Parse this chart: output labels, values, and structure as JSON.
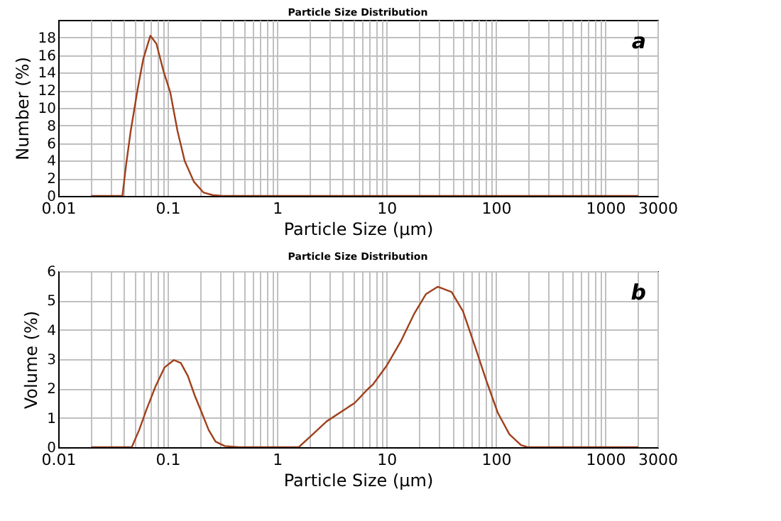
{
  "chart_data": [
    {
      "type": "line",
      "title": "Particle Size Distribution",
      "xlabel": "Particle Size (μm)",
      "ylabel": "Number (%)",
      "annotations": [
        "a"
      ],
      "log": "x",
      "grid": true,
      "marker": "none",
      "line_style": "solid",
      "xlim": [
        0.01,
        3000
      ],
      "ylim": [
        0,
        20
      ],
      "yticks": [
        0,
        2,
        4,
        6,
        8,
        10,
        12,
        14,
        16,
        18
      ],
      "xticks": [
        0.01,
        {
          "value": 0.02,
          "label": null
        },
        {
          "value": 0.03,
          "label": null
        },
        {
          "value": 0.04,
          "label": null
        },
        {
          "value": 0.05,
          "label": null
        },
        {
          "value": 0.06,
          "label": null
        },
        {
          "value": 0.07,
          "label": null
        },
        {
          "value": 0.08,
          "label": null
        },
        {
          "value": 0.09,
          "label": null
        },
        0.1,
        {
          "value": 0.2,
          "label": null
        },
        {
          "value": 0.3,
          "label": null
        },
        {
          "value": 0.4,
          "label": null
        },
        {
          "value": 0.5,
          "label": null
        },
        {
          "value": 0.6,
          "label": null
        },
        {
          "value": 0.7,
          "label": null
        },
        {
          "value": 0.8,
          "label": null
        },
        {
          "value": 0.9,
          "label": null
        },
        1,
        {
          "value": 2,
          "label": null
        },
        {
          "value": 3,
          "label": null
        },
        {
          "value": 4,
          "label": null
        },
        {
          "value": 5,
          "label": null
        },
        {
          "value": 6,
          "label": null
        },
        {
          "value": 7,
          "label": null
        },
        {
          "value": 8,
          "label": null
        },
        {
          "value": 9,
          "label": null
        },
        10,
        {
          "value": 20,
          "label": null
        },
        {
          "value": 30,
          "label": null
        },
        {
          "value": 40,
          "label": null
        },
        {
          "value": 50,
          "label": null
        },
        {
          "value": 60,
          "label": null
        },
        {
          "value": 70,
          "label": null
        },
        {
          "value": 80,
          "label": null
        },
        {
          "value": 90,
          "label": null
        },
        100,
        {
          "value": 200,
          "label": null
        },
        {
          "value": 300,
          "label": null
        },
        {
          "value": 400,
          "label": null
        },
        {
          "value": 500,
          "label": null
        },
        {
          "value": 600,
          "label": null
        },
        {
          "value": 700,
          "label": null
        },
        {
          "value": 800,
          "label": null
        },
        {
          "value": 900,
          "label": null
        },
        1000,
        {
          "value": 2000,
          "label": null
        },
        3000
      ],
      "series": [
        {
          "color": "#a0401c",
          "x": [
            0.02,
            0.0386,
            0.0417,
            0.046,
            0.0533,
            0.06,
            0.0695,
            0.0789,
            0.0916,
            0.106,
            0.123,
            0.143,
            0.174,
            0.212,
            0.257,
            0.313,
            2000
          ],
          "values": [
            0,
            0,
            3.5,
            7.4,
            12.2,
            15.6,
            18.2,
            17.3,
            14.2,
            11.7,
            7.4,
            4,
            1.6,
            0.4,
            0.1,
            0,
            0
          ]
        }
      ]
    },
    {
      "type": "line",
      "title": "Particle Size Distribution",
      "xlabel": "Particle Size (μm)",
      "ylabel": "Volume (%)",
      "annotations": [
        "b"
      ],
      "log": "x",
      "grid": true,
      "marker": "none",
      "line_style": "solid",
      "xlim": [
        0.01,
        3000
      ],
      "ylim": [
        0,
        6
      ],
      "yticks": [
        0,
        1,
        2,
        3,
        4,
        5,
        6
      ],
      "xticks": [
        0.01,
        {
          "value": 0.02,
          "label": null
        },
        {
          "value": 0.03,
          "label": null
        },
        {
          "value": 0.04,
          "label": null
        },
        {
          "value": 0.05,
          "label": null
        },
        {
          "value": 0.06,
          "label": null
        },
        {
          "value": 0.07,
          "label": null
        },
        {
          "value": 0.08,
          "label": null
        },
        {
          "value": 0.09,
          "label": null
        },
        0.1,
        {
          "value": 0.2,
          "label": null
        },
        {
          "value": 0.3,
          "label": null
        },
        {
          "value": 0.4,
          "label": null
        },
        {
          "value": 0.5,
          "label": null
        },
        {
          "value": 0.6,
          "label": null
        },
        {
          "value": 0.7,
          "label": null
        },
        {
          "value": 0.8,
          "label": null
        },
        {
          "value": 0.9,
          "label": null
        },
        1,
        {
          "value": 2,
          "label": null
        },
        {
          "value": 3,
          "label": null
        },
        {
          "value": 4,
          "label": null
        },
        {
          "value": 5,
          "label": null
        },
        {
          "value": 6,
          "label": null
        },
        {
          "value": 7,
          "label": null
        },
        {
          "value": 8,
          "label": null
        },
        {
          "value": 9,
          "label": null
        },
        10,
        {
          "value": 20,
          "label": null
        },
        {
          "value": 30,
          "label": null
        },
        {
          "value": 40,
          "label": null
        },
        {
          "value": 50,
          "label": null
        },
        {
          "value": 60,
          "label": null
        },
        {
          "value": 70,
          "label": null
        },
        {
          "value": 80,
          "label": null
        },
        {
          "value": 90,
          "label": null
        },
        100,
        {
          "value": 200,
          "label": null
        },
        {
          "value": 300,
          "label": null
        },
        {
          "value": 400,
          "label": null
        },
        {
          "value": 500,
          "label": null
        },
        {
          "value": 600,
          "label": null
        },
        {
          "value": 700,
          "label": null
        },
        {
          "value": 800,
          "label": null
        },
        {
          "value": 900,
          "label": null
        },
        1000,
        {
          "value": 2000,
          "label": null
        },
        3000
      ],
      "series": [
        {
          "color": "#a0401c",
          "x": [
            0.02,
            0.047,
            0.055,
            0.0636,
            0.0773,
            0.0938,
            0.114,
            0.132,
            0.153,
            0.177,
            0.205,
            0.237,
            0.274,
            0.333,
            0.447,
            1.58,
            2.12,
            2.84,
            4.62,
            5.1,
            6.8,
            7.5,
            10.1,
            13.5,
            18,
            23,
            29.4,
            39.4,
            50.1,
            64.1,
            81.7,
            104,
            133,
            170,
            195,
            2000
          ],
          "values": [
            0,
            0,
            0.59,
            1.25,
            2.06,
            2.72,
            2.97,
            2.87,
            2.43,
            1.76,
            1.18,
            0.59,
            0.19,
            0.04,
            0,
            0,
            0.44,
            0.88,
            1.4,
            1.5,
            1.99,
            2.13,
            2.79,
            3.6,
            4.56,
            5.22,
            5.47,
            5.29,
            4.63,
            3.46,
            2.28,
            1.18,
            0.44,
            0.07,
            0,
            0
          ]
        }
      ]
    }
  ]
}
